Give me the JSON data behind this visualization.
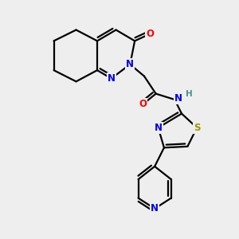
{
  "bg_color": "#eeeeee",
  "bond_color": "#000000",
  "bond_width": 1.6,
  "atoms": {
    "N_blue": "#0000ee",
    "O_red": "#ff0000",
    "S_olive": "#999900",
    "NH_teal": "#4a9090"
  },
  "layout": {
    "xlim": [
      0.0,
      10.0
    ],
    "ylim": [
      0.0,
      10.0
    ]
  }
}
